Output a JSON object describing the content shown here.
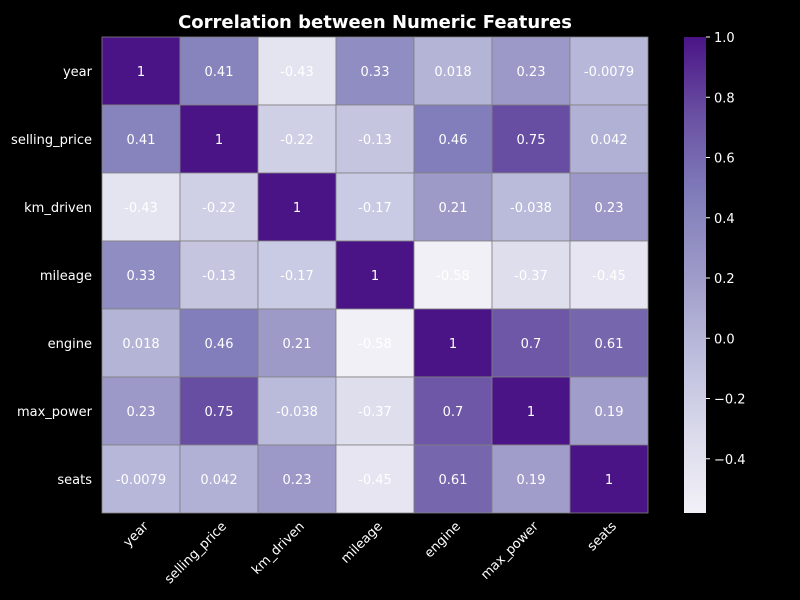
{
  "chart_data": {
    "type": "heatmap",
    "title": "Correlation between Numeric Features",
    "xlabel": "",
    "ylabel": "",
    "x_labels": [
      "year",
      "selling_price",
      "km_driven",
      "mileage",
      "engine",
      "max_power",
      "seats"
    ],
    "y_labels": [
      "year",
      "selling_price",
      "km_driven",
      "mileage",
      "engine",
      "max_power",
      "seats"
    ],
    "values": [
      [
        1,
        0.41,
        -0.43,
        0.33,
        0.018,
        0.23,
        -0.0079
      ],
      [
        0.41,
        1,
        -0.22,
        -0.13,
        0.46,
        0.75,
        0.042
      ],
      [
        -0.43,
        -0.22,
        1,
        -0.17,
        0.21,
        -0.038,
        0.23
      ],
      [
        0.33,
        -0.13,
        -0.17,
        1,
        -0.58,
        -0.37,
        -0.45
      ],
      [
        0.018,
        0.46,
        0.21,
        -0.58,
        1,
        0.7,
        0.61
      ],
      [
        0.23,
        0.75,
        -0.038,
        -0.37,
        0.7,
        1,
        0.19
      ],
      [
        -0.0079,
        0.042,
        0.23,
        -0.45,
        0.61,
        0.19,
        1
      ]
    ],
    "cell_labels": [
      [
        "1",
        "0.41",
        "-0.43",
        "0.33",
        "0.018",
        "0.23",
        "-0.0079"
      ],
      [
        "0.41",
        "1",
        "-0.22",
        "-0.13",
        "0.46",
        "0.75",
        "0.042"
      ],
      [
        "-0.43",
        "-0.22",
        "1",
        "-0.17",
        "0.21",
        "-0.038",
        "0.23"
      ],
      [
        "0.33",
        "-0.13",
        "-0.17",
        "1",
        "-0.58",
        "-0.37",
        "-0.45"
      ],
      [
        "0.018",
        "0.46",
        "0.21",
        "-0.58",
        "1",
        "0.7",
        "0.61"
      ],
      [
        "0.23",
        "0.75",
        "-0.038",
        "-0.37",
        "0.7",
        "1",
        "0.19"
      ],
      [
        "-0.0079",
        "0.042",
        "0.23",
        "-0.45",
        "0.61",
        "0.19",
        "1"
      ]
    ],
    "colorbar": {
      "range": [
        -0.58,
        1.0
      ],
      "ticks": [
        1.0,
        0.8,
        0.6,
        0.4,
        0.2,
        0.0,
        -0.2,
        -0.4
      ],
      "tick_labels": [
        "1.0",
        "0.8",
        "0.6",
        "0.4",
        "0.2",
        "0.0",
        "−0.2",
        "−0.4"
      ]
    },
    "colormap": [
      "#f2f0f7",
      "#dadaeb",
      "#bcbddc",
      "#9e9ac8",
      "#807dba",
      "#6a51a3",
      "#4a1486"
    ],
    "grid": false
  },
  "colors": {
    "background": "#000000",
    "text": "#ffffff",
    "cell_border": "#808080"
  }
}
